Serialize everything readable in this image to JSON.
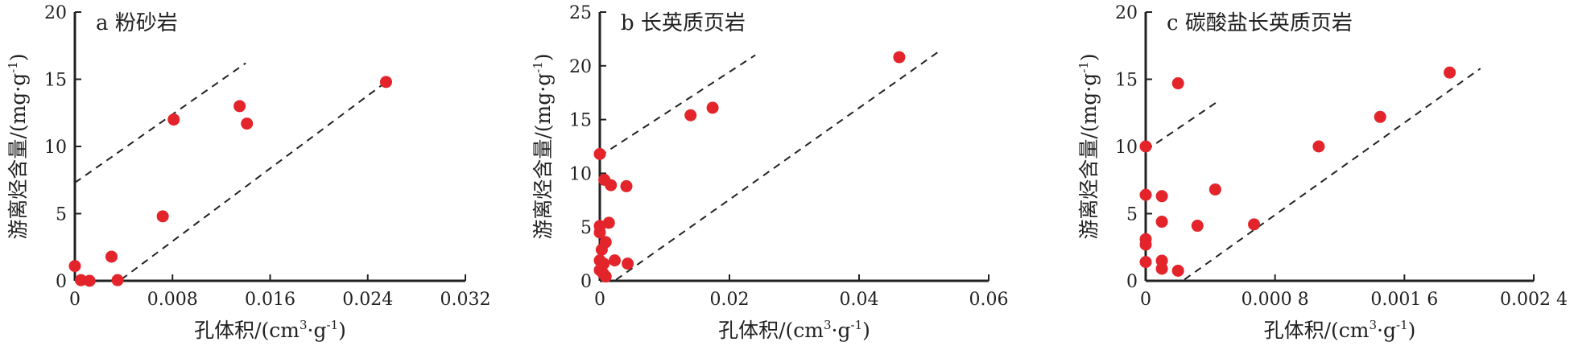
{
  "chart_data": [
    {
      "type": "scatter",
      "title": "a 粉砂岩",
      "xlabel": "孔体积/(cm³·g⁻¹)",
      "ylabel": "游离烃含量/(mg·g⁻¹)",
      "xlim": [
        0,
        0.032
      ],
      "ylim": [
        0,
        20
      ],
      "x_ticks": [
        0,
        0.008,
        0.016,
        0.024,
        0.032
      ],
      "x_tick_labels": [
        "0",
        "0.008",
        "0.016",
        "0.024",
        "0.032"
      ],
      "y_ticks": [
        0,
        5,
        10,
        15,
        20
      ],
      "y_tick_labels": [
        "0",
        "5",
        "10",
        "15",
        "20"
      ],
      "points": [
        {
          "x": 0.0,
          "y": 1.1
        },
        {
          "x": 0.0005,
          "y": 0.05
        },
        {
          "x": 0.0012,
          "y": 0.0
        },
        {
          "x": 0.003,
          "y": 1.8
        },
        {
          "x": 0.0035,
          "y": 0.05
        },
        {
          "x": 0.0072,
          "y": 4.8
        },
        {
          "x": 0.0081,
          "y": 12.0
        },
        {
          "x": 0.0135,
          "y": 13.0
        },
        {
          "x": 0.0141,
          "y": 11.7
        },
        {
          "x": 0.0255,
          "y": 14.8
        }
      ],
      "lines": [
        {
          "x": [
            0,
            0.014
          ],
          "y": [
            7.3,
            16.2
          ]
        },
        {
          "x": [
            0.0038,
            0.0258
          ],
          "y": [
            0.1,
            15.0
          ]
        }
      ],
      "marker_color": "#e3242b",
      "line_color": "#222222"
    },
    {
      "type": "scatter",
      "title": "b 长英质页岩",
      "xlabel": "孔体积/(cm³·g⁻¹)",
      "ylabel": "游离烃含量/(mg·g⁻¹)",
      "xlim": [
        0,
        0.06
      ],
      "ylim": [
        0,
        25
      ],
      "x_ticks": [
        0,
        0.02,
        0.04,
        0.06
      ],
      "x_tick_labels": [
        "0",
        "0.02",
        "0.04",
        "0.06"
      ],
      "y_ticks": [
        0,
        5,
        10,
        15,
        20,
        25
      ],
      "y_tick_labels": [
        "0",
        "5",
        "10",
        "15",
        "20",
        "25"
      ],
      "points": [
        {
          "x": 0.0,
          "y": 11.8
        },
        {
          "x": 0.0007,
          "y": 9.4
        },
        {
          "x": 0.0017,
          "y": 8.9
        },
        {
          "x": 0.0041,
          "y": 8.8
        },
        {
          "x": 0.0,
          "y": 5.1
        },
        {
          "x": 0.0014,
          "y": 5.4
        },
        {
          "x": 0.0,
          "y": 4.5
        },
        {
          "x": 0.0009,
          "y": 3.6
        },
        {
          "x": 0.0003,
          "y": 2.9
        },
        {
          "x": 0.0,
          "y": 1.9
        },
        {
          "x": 0.0006,
          "y": 1.6
        },
        {
          "x": 0.0023,
          "y": 1.9
        },
        {
          "x": 0.0043,
          "y": 1.6
        },
        {
          "x": 0.0,
          "y": 1.0
        },
        {
          "x": 0.0005,
          "y": 0.7
        },
        {
          "x": 0.0009,
          "y": 0.4
        },
        {
          "x": 0.014,
          "y": 15.4
        },
        {
          "x": 0.0174,
          "y": 16.1
        },
        {
          "x": 0.0462,
          "y": 20.8
        }
      ],
      "lines": [
        {
          "x": [
            0,
            0.024
          ],
          "y": [
            11.6,
            21.0
          ]
        },
        {
          "x": [
            0.0025,
            0.0527
          ],
          "y": [
            0.1,
            21.5
          ]
        }
      ],
      "marker_color": "#e3242b",
      "line_color": "#222222"
    },
    {
      "type": "scatter",
      "title": "c 碳酸盐长英质页岩",
      "xlabel": "孔体积/(cm³·g⁻¹)",
      "ylabel": "游离烃含量/(mg·g⁻¹)",
      "xlim": [
        0,
        0.0024
      ],
      "ylim": [
        0,
        20
      ],
      "x_ticks": [
        0,
        0.0008,
        0.0016,
        0.0024
      ],
      "x_tick_labels": [
        "0",
        "0.000 8",
        "0.001 6",
        "0.002 4"
      ],
      "y_ticks": [
        0,
        5,
        10,
        15,
        20
      ],
      "y_tick_labels": [
        "0",
        "5",
        "10",
        "15",
        "20"
      ],
      "points": [
        {
          "x": 0.0,
          "y": 10.0
        },
        {
          "x": 0.0,
          "y": 6.4
        },
        {
          "x": 0.0,
          "y": 3.1
        },
        {
          "x": 0.0,
          "y": 2.7
        },
        {
          "x": 0.0,
          "y": 1.4
        },
        {
          "x": 0.0001,
          "y": 6.3
        },
        {
          "x": 0.0001,
          "y": 4.4
        },
        {
          "x": 0.0001,
          "y": 1.5
        },
        {
          "x": 0.0001,
          "y": 0.9
        },
        {
          "x": 0.0002,
          "y": 14.7
        },
        {
          "x": 0.0002,
          "y": 0.75
        },
        {
          "x": 0.00032,
          "y": 4.1
        },
        {
          "x": 0.00043,
          "y": 6.8
        },
        {
          "x": 0.00067,
          "y": 4.2
        },
        {
          "x": 0.00107,
          "y": 10.0
        },
        {
          "x": 0.00145,
          "y": 12.2
        },
        {
          "x": 0.00188,
          "y": 15.5
        }
      ],
      "lines": [
        {
          "x": [
            0,
            0.00044
          ],
          "y": [
            9.7,
            13.3
          ]
        },
        {
          "x": [
            0.00024,
            0.00207
          ],
          "y": [
            0.1,
            15.8
          ]
        }
      ],
      "marker_color": "#e3242b",
      "line_color": "#222222"
    }
  ]
}
